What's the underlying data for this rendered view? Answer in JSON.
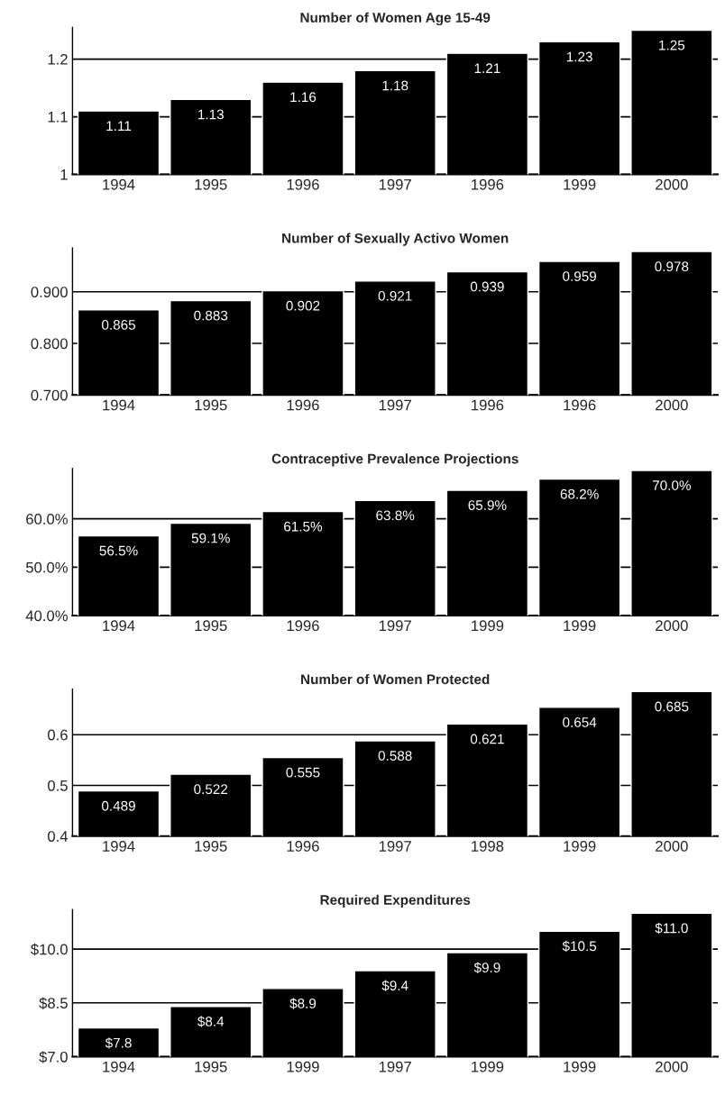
{
  "chart_data": [
    {
      "type": "bar",
      "title": "Number of Women Age 15-49",
      "categories": [
        "1994",
        "1995",
        "1996",
        "1997",
        "1996",
        "1999",
        "2000"
      ],
      "values": [
        1.11,
        1.13,
        1.16,
        1.18,
        1.21,
        1.23,
        1.25
      ],
      "value_labels": [
        "1.11",
        "1.13",
        "1.16",
        "1.18",
        "1.21",
        "1.23",
        "1.25"
      ],
      "color": "#000000",
      "ylim": [
        1,
        1.255
      ],
      "yticks": [
        1,
        1.1,
        1.2
      ],
      "grid": "y"
    },
    {
      "type": "bar",
      "title": "Number of Sexually Activo Women",
      "categories": [
        "1994",
        "1995",
        "1996",
        "1997",
        "1996",
        "1996",
        "2000"
      ],
      "values": [
        0.865,
        0.883,
        0.902,
        0.921,
        0.939,
        0.959,
        0.978
      ],
      "value_labels": [
        "0.865",
        "0.883",
        "0.902",
        "0.921",
        "0.939",
        "0.959",
        "0.978"
      ],
      "color": "#000000",
      "ylim": [
        0.7,
        0.985
      ],
      "yticks": [
        {
          "value": 0.7,
          "label": "0.700"
        },
        {
          "value": 0.8,
          "label": "0.800"
        },
        {
          "value": 0.9,
          "label": "0.900"
        }
      ],
      "grid": "y"
    },
    {
      "type": "bar",
      "title": "Contraceptive Prevalence Projections",
      "categories": [
        "1994",
        "1995",
        "1996",
        "1997",
        "1999",
        "1999",
        "2000"
      ],
      "values": [
        56.5,
        59.1,
        61.5,
        63.8,
        65.9,
        68.2,
        70.0
      ],
      "value_labels": [
        "56.5%",
        "59.1%",
        "61.5%",
        "63.8%",
        "65.9%",
        "68.2%",
        "70.0%"
      ],
      "color": "#000000",
      "ylim": [
        40,
        70.4
      ],
      "yticks": [
        {
          "value": 40,
          "label": "40.0%"
        },
        {
          "value": 50,
          "label": "50.0%"
        },
        {
          "value": 60,
          "label": "60.0%"
        }
      ],
      "grid": "y"
    },
    {
      "type": "bar",
      "title": "Number of Women Protected",
      "categories": [
        "1994",
        "1995",
        "1996",
        "1997",
        "1998",
        "1999",
        "2000"
      ],
      "values": [
        0.489,
        0.522,
        0.555,
        0.588,
        0.621,
        0.654,
        0.685
      ],
      "value_labels": [
        "0.489",
        "0.522",
        "0.555",
        "0.588",
        "0.621",
        "0.654",
        "0.685"
      ],
      "color": "#000000",
      "ylim": [
        0.4,
        0.69
      ],
      "yticks": [
        0.4,
        0.5,
        0.6
      ],
      "grid": "y"
    },
    {
      "type": "bar",
      "title": "Required Expenditures",
      "categories": [
        "1994",
        "1995",
        "1999",
        "1997",
        "1999",
        "1999",
        "2000"
      ],
      "values": [
        7.8,
        8.4,
        8.9,
        9.4,
        9.9,
        10.5,
        11.0
      ],
      "value_labels": [
        "$7.8",
        "$8.4",
        "$8.9",
        "$9.4",
        "$9.9",
        "$10.5",
        "$11.0"
      ],
      "color": "#000000",
      "ylim": [
        7,
        11.1
      ],
      "yticks": [
        {
          "value": 7,
          "label": "$7.0"
        },
        {
          "value": 8.5,
          "label": "$8.5"
        },
        {
          "value": 10,
          "label": "$10.0"
        }
      ],
      "grid": "y"
    }
  ]
}
